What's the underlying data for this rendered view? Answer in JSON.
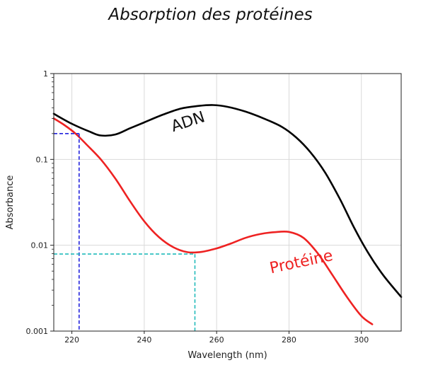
{
  "title": "Absorption des protéines",
  "chart_data": {
    "type": "line",
    "xlabel": "Wavelength (nm)",
    "ylabel": "Absorbance",
    "xlim": [
      215,
      311
    ],
    "ylim": [
      0.001,
      1
    ],
    "yscale": "log",
    "grid": true,
    "x_ticks": [
      220,
      240,
      260,
      280,
      300
    ],
    "x_tick_labels": [
      "220",
      "240",
      "260",
      "280",
      "300"
    ],
    "y_ticks": [
      0.001,
      0.01,
      0.1,
      1
    ],
    "y_tick_labels": [
      "0.001",
      "0.01",
      "0.1",
      "1"
    ],
    "series": [
      {
        "name": "ADN",
        "color": "#000000",
        "x": [
          215,
          220,
          225,
          228,
          232,
          236,
          240,
          245,
          250,
          255,
          259,
          263,
          268,
          273,
          278,
          282,
          286,
          290,
          294,
          298,
          302,
          306,
          311
        ],
        "y": [
          0.34,
          0.26,
          0.21,
          0.19,
          0.195,
          0.23,
          0.27,
          0.33,
          0.39,
          0.42,
          0.43,
          0.41,
          0.36,
          0.3,
          0.24,
          0.18,
          0.12,
          0.07,
          0.035,
          0.016,
          0.008,
          0.0045,
          0.0025
        ]
      },
      {
        "name": "Protéine",
        "color": "#ee2222",
        "x": [
          215,
          218,
          221,
          224,
          228,
          232,
          236,
          240,
          244,
          248,
          252,
          256,
          260,
          264,
          268,
          272,
          276,
          280,
          284,
          288,
          292,
          296,
          300,
          303
        ],
        "y": [
          0.3,
          0.25,
          0.2,
          0.15,
          0.1,
          0.06,
          0.033,
          0.019,
          0.0125,
          0.0095,
          0.0083,
          0.0084,
          0.0092,
          0.0105,
          0.0122,
          0.0135,
          0.0142,
          0.0143,
          0.0122,
          0.008,
          0.0045,
          0.0025,
          0.0015,
          0.0012
        ]
      }
    ],
    "guides": [
      {
        "color": "#2222dd",
        "x": 222,
        "y": 0.2
      },
      {
        "color": "#22bbbb",
        "x": 254,
        "y": 0.0079
      }
    ],
    "annotations": [
      {
        "text": "ADN",
        "color": "#111111",
        "x": 248,
        "y": 0.21,
        "rotate": -18
      },
      {
        "text": "Protéine",
        "color": "#ee2222",
        "x": 275,
        "y": 0.0047,
        "rotate": -12
      }
    ]
  }
}
